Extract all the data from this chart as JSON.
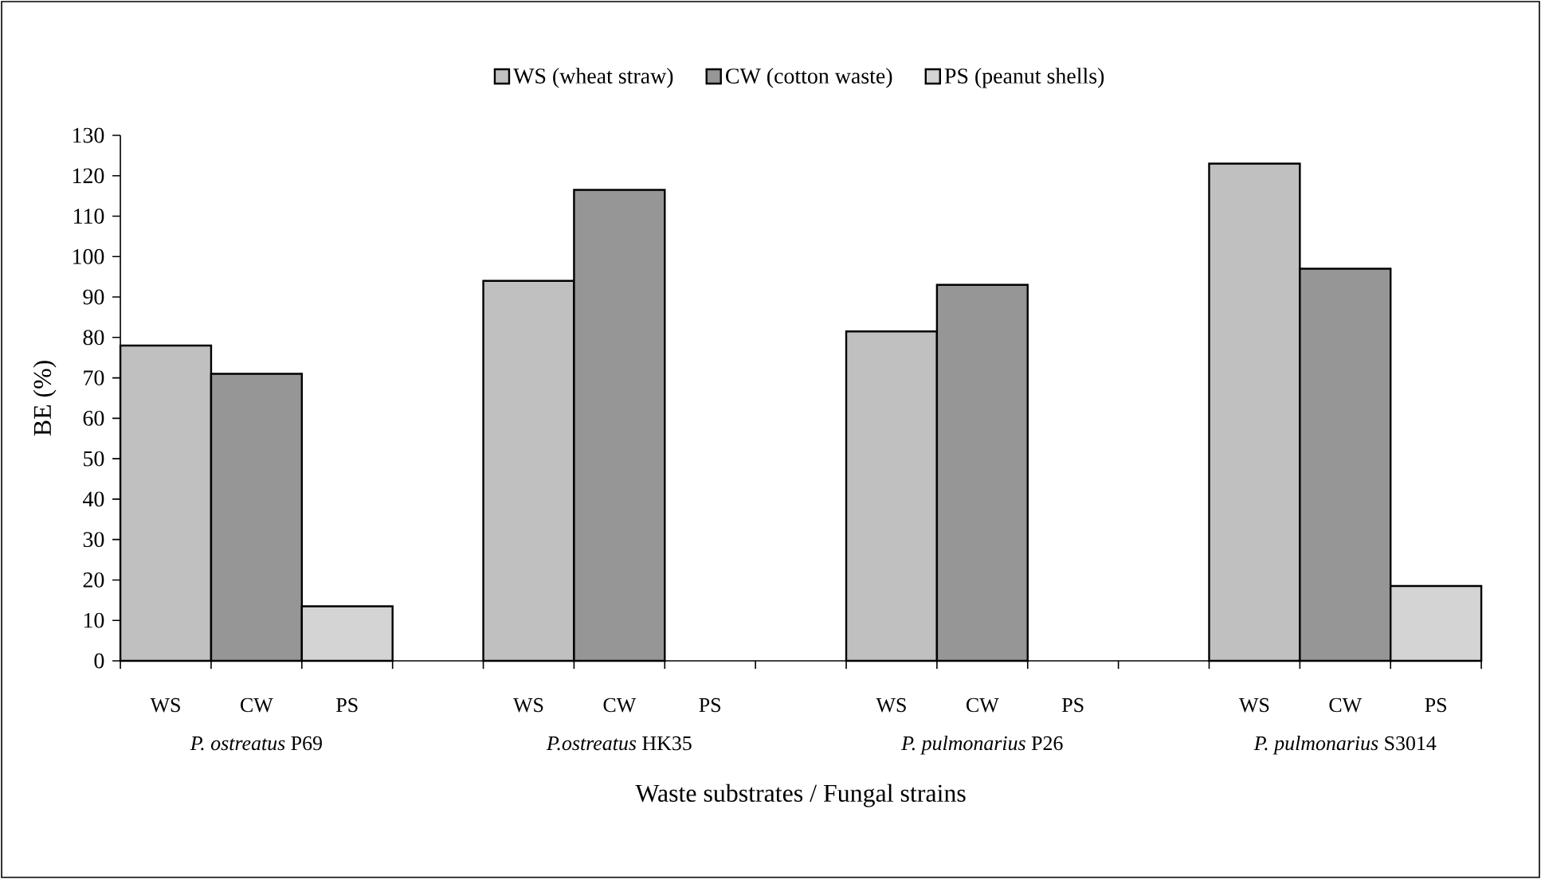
{
  "chart_data": {
    "type": "bar",
    "xlabel": "Waste substrates / Fungal strains",
    "ylabel": "BE (%)",
    "categories": [
      "*P. ostreatus* P69",
      "*P.ostreatus* HK35",
      "*P. pulmonarius* P26",
      "*P. pulmonarius* S3014"
    ],
    "series": [
      {
        "name": "WS  (wheat straw)",
        "color": "#c0c0c0",
        "values": [
          78,
          94,
          81.5,
          123
        ]
      },
      {
        "name": "CW  (cotton waste)",
        "color": "#969696",
        "values": [
          71,
          116.5,
          93,
          97
        ]
      },
      {
        "name": "PS  (peanut shells)",
        "color": "#d4d4d4",
        "values": [
          13.5,
          null,
          null,
          18.5
        ]
      }
    ],
    "annotations": [
      "WS",
      "CW",
      "PS",
      "WS",
      "CW",
      "PS",
      "WS",
      "CW",
      "PS",
      "WS",
      "CW",
      "PS"
    ],
    "ylim": [
      0,
      130
    ],
    "yticks": [
      0,
      10,
      20,
      30,
      40,
      50,
      60,
      70,
      80,
      90,
      100,
      110,
      120,
      130
    ],
    "legend": "top"
  }
}
